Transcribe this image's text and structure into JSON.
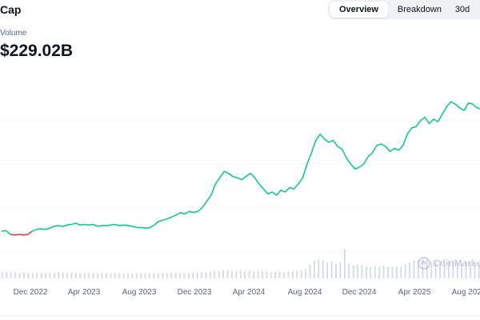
{
  "header": {
    "title": "Cap",
    "metric_label": "Volume",
    "metric_value": "$229.02B"
  },
  "toolbar": {
    "tabs": [
      {
        "label": "Overview",
        "active": true
      },
      {
        "label": "Breakdown",
        "active": false
      }
    ],
    "range_label": "30d"
  },
  "watermark": {
    "text": "CoinMarketCap",
    "icon": "coinmarketcap-logo-icon"
  },
  "colors": {
    "up": "#16c784",
    "down": "#ea3943",
    "volume_bar": "#cfd6e4",
    "grid": "#eff2f5"
  },
  "chart_data": {
    "type": "line",
    "x_ticks": [
      "Dec 2022",
      "Apr 2023",
      "Aug 2023",
      "Dec 2023",
      "Apr 2024",
      "Aug 2024",
      "Dec 2024",
      "Apr 2025",
      "Aug 2025"
    ],
    "x_start": "2022-09",
    "x_end": "2025-09",
    "ylim": [
      0,
      280
    ],
    "grid": true,
    "series": [
      {
        "values": [
          32,
          33,
          27,
          26,
          27,
          26,
          27,
          32,
          35,
          36,
          35,
          37,
          40,
          41,
          40,
          42,
          43,
          45,
          42,
          43,
          42,
          43,
          40,
          41,
          41,
          42,
          43,
          41,
          42,
          41,
          40,
          38,
          38,
          37,
          38,
          42,
          48,
          50,
          52,
          55,
          58,
          62,
          60,
          64,
          62,
          64,
          70,
          80,
          90,
          108,
          118,
          128,
          125,
          120,
          118,
          115,
          120,
          125,
          118,
          108,
          100,
          92,
          95,
          90,
          98,
          95,
          102,
          100,
          108,
          118,
          140,
          158,
          178,
          188,
          180,
          175,
          178,
          168,
          164,
          150,
          140,
          132,
          135,
          140,
          152,
          158,
          170,
          172,
          168,
          160,
          165,
          162,
          170,
          188,
          198,
          200,
          210,
          215,
          205,
          212,
          208,
          220,
          232,
          240,
          236,
          230,
          226,
          238,
          236,
          230,
          228
        ]
      }
    ],
    "volume": [
      12,
      12,
      12,
      12,
      11,
      11,
      11,
      10,
      11,
      10,
      10,
      11,
      11,
      12,
      11,
      11,
      11,
      11,
      10,
      10,
      10,
      10,
      10,
      11,
      10,
      10,
      10,
      10,
      10,
      10,
      10,
      10,
      10,
      10,
      10,
      10,
      10,
      10,
      10,
      10,
      10,
      10,
      10,
      10,
      11,
      11,
      12,
      12,
      13,
      14,
      14,
      15,
      15,
      15,
      14,
      14,
      13,
      14,
      14,
      14,
      13,
      13,
      12,
      12,
      13,
      12,
      13,
      13,
      14,
      15,
      18,
      25,
      34,
      36,
      34,
      30,
      32,
      28,
      30,
      55,
      28,
      24,
      26,
      24,
      22,
      22,
      24,
      22,
      24,
      22,
      22,
      22,
      22,
      26,
      30,
      34,
      34,
      35,
      30,
      31,
      32,
      34,
      36,
      34,
      33,
      30,
      28,
      32,
      30,
      28,
      26
    ]
  }
}
